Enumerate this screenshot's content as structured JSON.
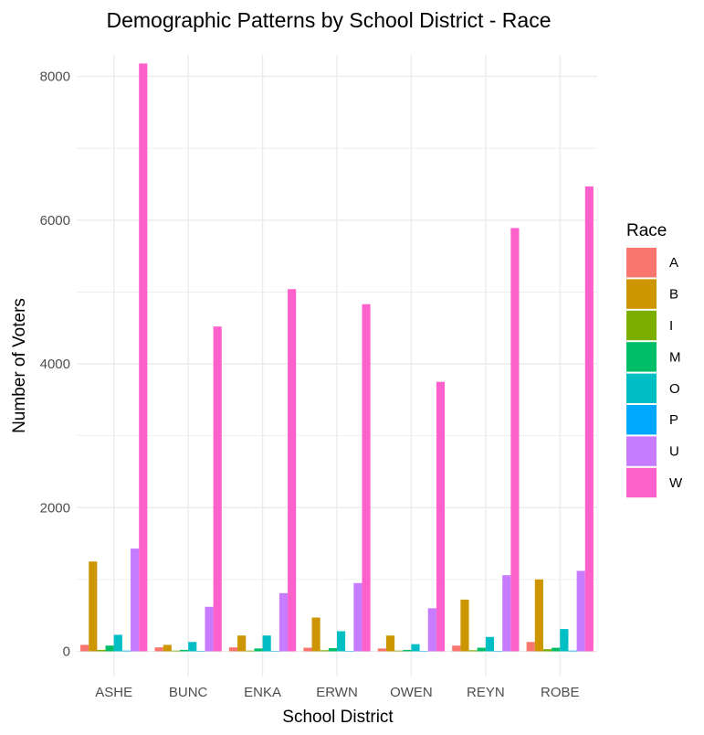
{
  "chart_data": {
    "type": "bar",
    "title": "Demographic Patterns by School District - Race",
    "xlabel": "School District",
    "ylabel": "Number of Voters",
    "categories": [
      "ASHE",
      "BUNC",
      "ENKA",
      "ERWN",
      "OWEN",
      "REYN",
      "ROBE"
    ],
    "ylim": [
      -350,
      8300
    ],
    "yticks": [
      0,
      2000,
      4000,
      6000,
      8000
    ],
    "grid": true,
    "legend": {
      "title": "Race",
      "placement": "right"
    },
    "series": [
      {
        "name": "A",
        "color": "#F8766D",
        "values": [
          90,
          55,
          55,
          50,
          40,
          80,
          130
        ]
      },
      {
        "name": "B",
        "color": "#CD9600",
        "values": [
          1250,
          90,
          220,
          470,
          220,
          720,
          1000
        ]
      },
      {
        "name": "I",
        "color": "#7CAE00",
        "values": [
          20,
          10,
          10,
          15,
          10,
          15,
          30
        ]
      },
      {
        "name": "M",
        "color": "#00BE67",
        "values": [
          80,
          20,
          40,
          45,
          20,
          50,
          50
        ]
      },
      {
        "name": "O",
        "color": "#00BFC4",
        "values": [
          230,
          130,
          220,
          280,
          100,
          200,
          310
        ]
      },
      {
        "name": "P",
        "color": "#00A9FF",
        "values": [
          10,
          5,
          5,
          5,
          5,
          5,
          10
        ]
      },
      {
        "name": "U",
        "color": "#C77CFF",
        "values": [
          1430,
          620,
          810,
          950,
          600,
          1060,
          1120
        ]
      },
      {
        "name": "W",
        "color": "#FF61CC",
        "values": [
          8180,
          4520,
          5040,
          4830,
          3750,
          5890,
          6470
        ]
      }
    ]
  }
}
